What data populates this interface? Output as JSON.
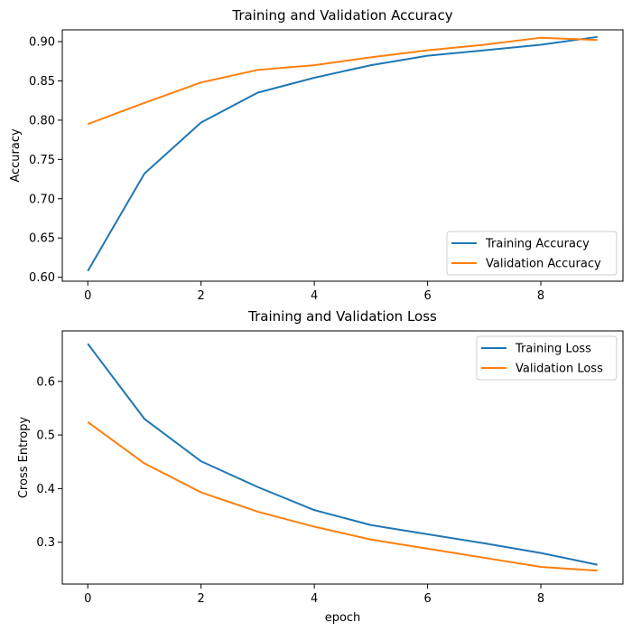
{
  "chart_data": [
    {
      "type": "line",
      "title": "Training and Validation Accuracy",
      "xlabel": "",
      "ylabel": "Accuracy",
      "xlim": [
        -0.45,
        9.45
      ],
      "ylim": [
        0.595,
        0.915
      ],
      "xticks": [
        0,
        2,
        4,
        6,
        8
      ],
      "yticks": [
        0.6,
        0.65,
        0.7,
        0.75,
        0.8,
        0.85,
        0.9
      ],
      "ytick_decimals": 2,
      "grid": false,
      "legend_position": "lower-right",
      "x": [
        0,
        1,
        2,
        3,
        4,
        5,
        6,
        7,
        8,
        9
      ],
      "series": [
        {
          "name": "Training Accuracy",
          "color": "#1f77b4",
          "values": [
            0.608,
            0.732,
            0.797,
            0.835,
            0.854,
            0.87,
            0.882,
            0.889,
            0.896,
            0.906
          ]
        },
        {
          "name": "Validation Accuracy",
          "color": "#ff7f0e",
          "values": [
            0.795,
            0.822,
            0.848,
            0.864,
            0.87,
            0.88,
            0.889,
            0.896,
            0.905,
            0.902
          ]
        }
      ]
    },
    {
      "type": "line",
      "title": "Training and Validation Loss",
      "xlabel": "epoch",
      "ylabel": "Cross Entropy",
      "xlim": [
        -0.45,
        9.45
      ],
      "ylim": [
        0.222,
        0.694
      ],
      "xticks": [
        0,
        2,
        4,
        6,
        8
      ],
      "yticks": [
        0.3,
        0.4,
        0.5,
        0.6
      ],
      "ytick_decimals": 1,
      "grid": false,
      "legend_position": "upper-right",
      "x": [
        0,
        1,
        2,
        3,
        4,
        5,
        6,
        7,
        8,
        9
      ],
      "series": [
        {
          "name": "Training Loss",
          "color": "#1f77b4",
          "values": [
            0.67,
            0.53,
            0.451,
            0.403,
            0.36,
            0.332,
            0.315,
            0.298,
            0.28,
            0.258
          ]
        },
        {
          "name": "Validation Loss",
          "color": "#ff7f0e",
          "values": [
            0.524,
            0.447,
            0.393,
            0.357,
            0.329,
            0.305,
            0.288,
            0.271,
            0.254,
            0.247
          ]
        }
      ]
    }
  ]
}
